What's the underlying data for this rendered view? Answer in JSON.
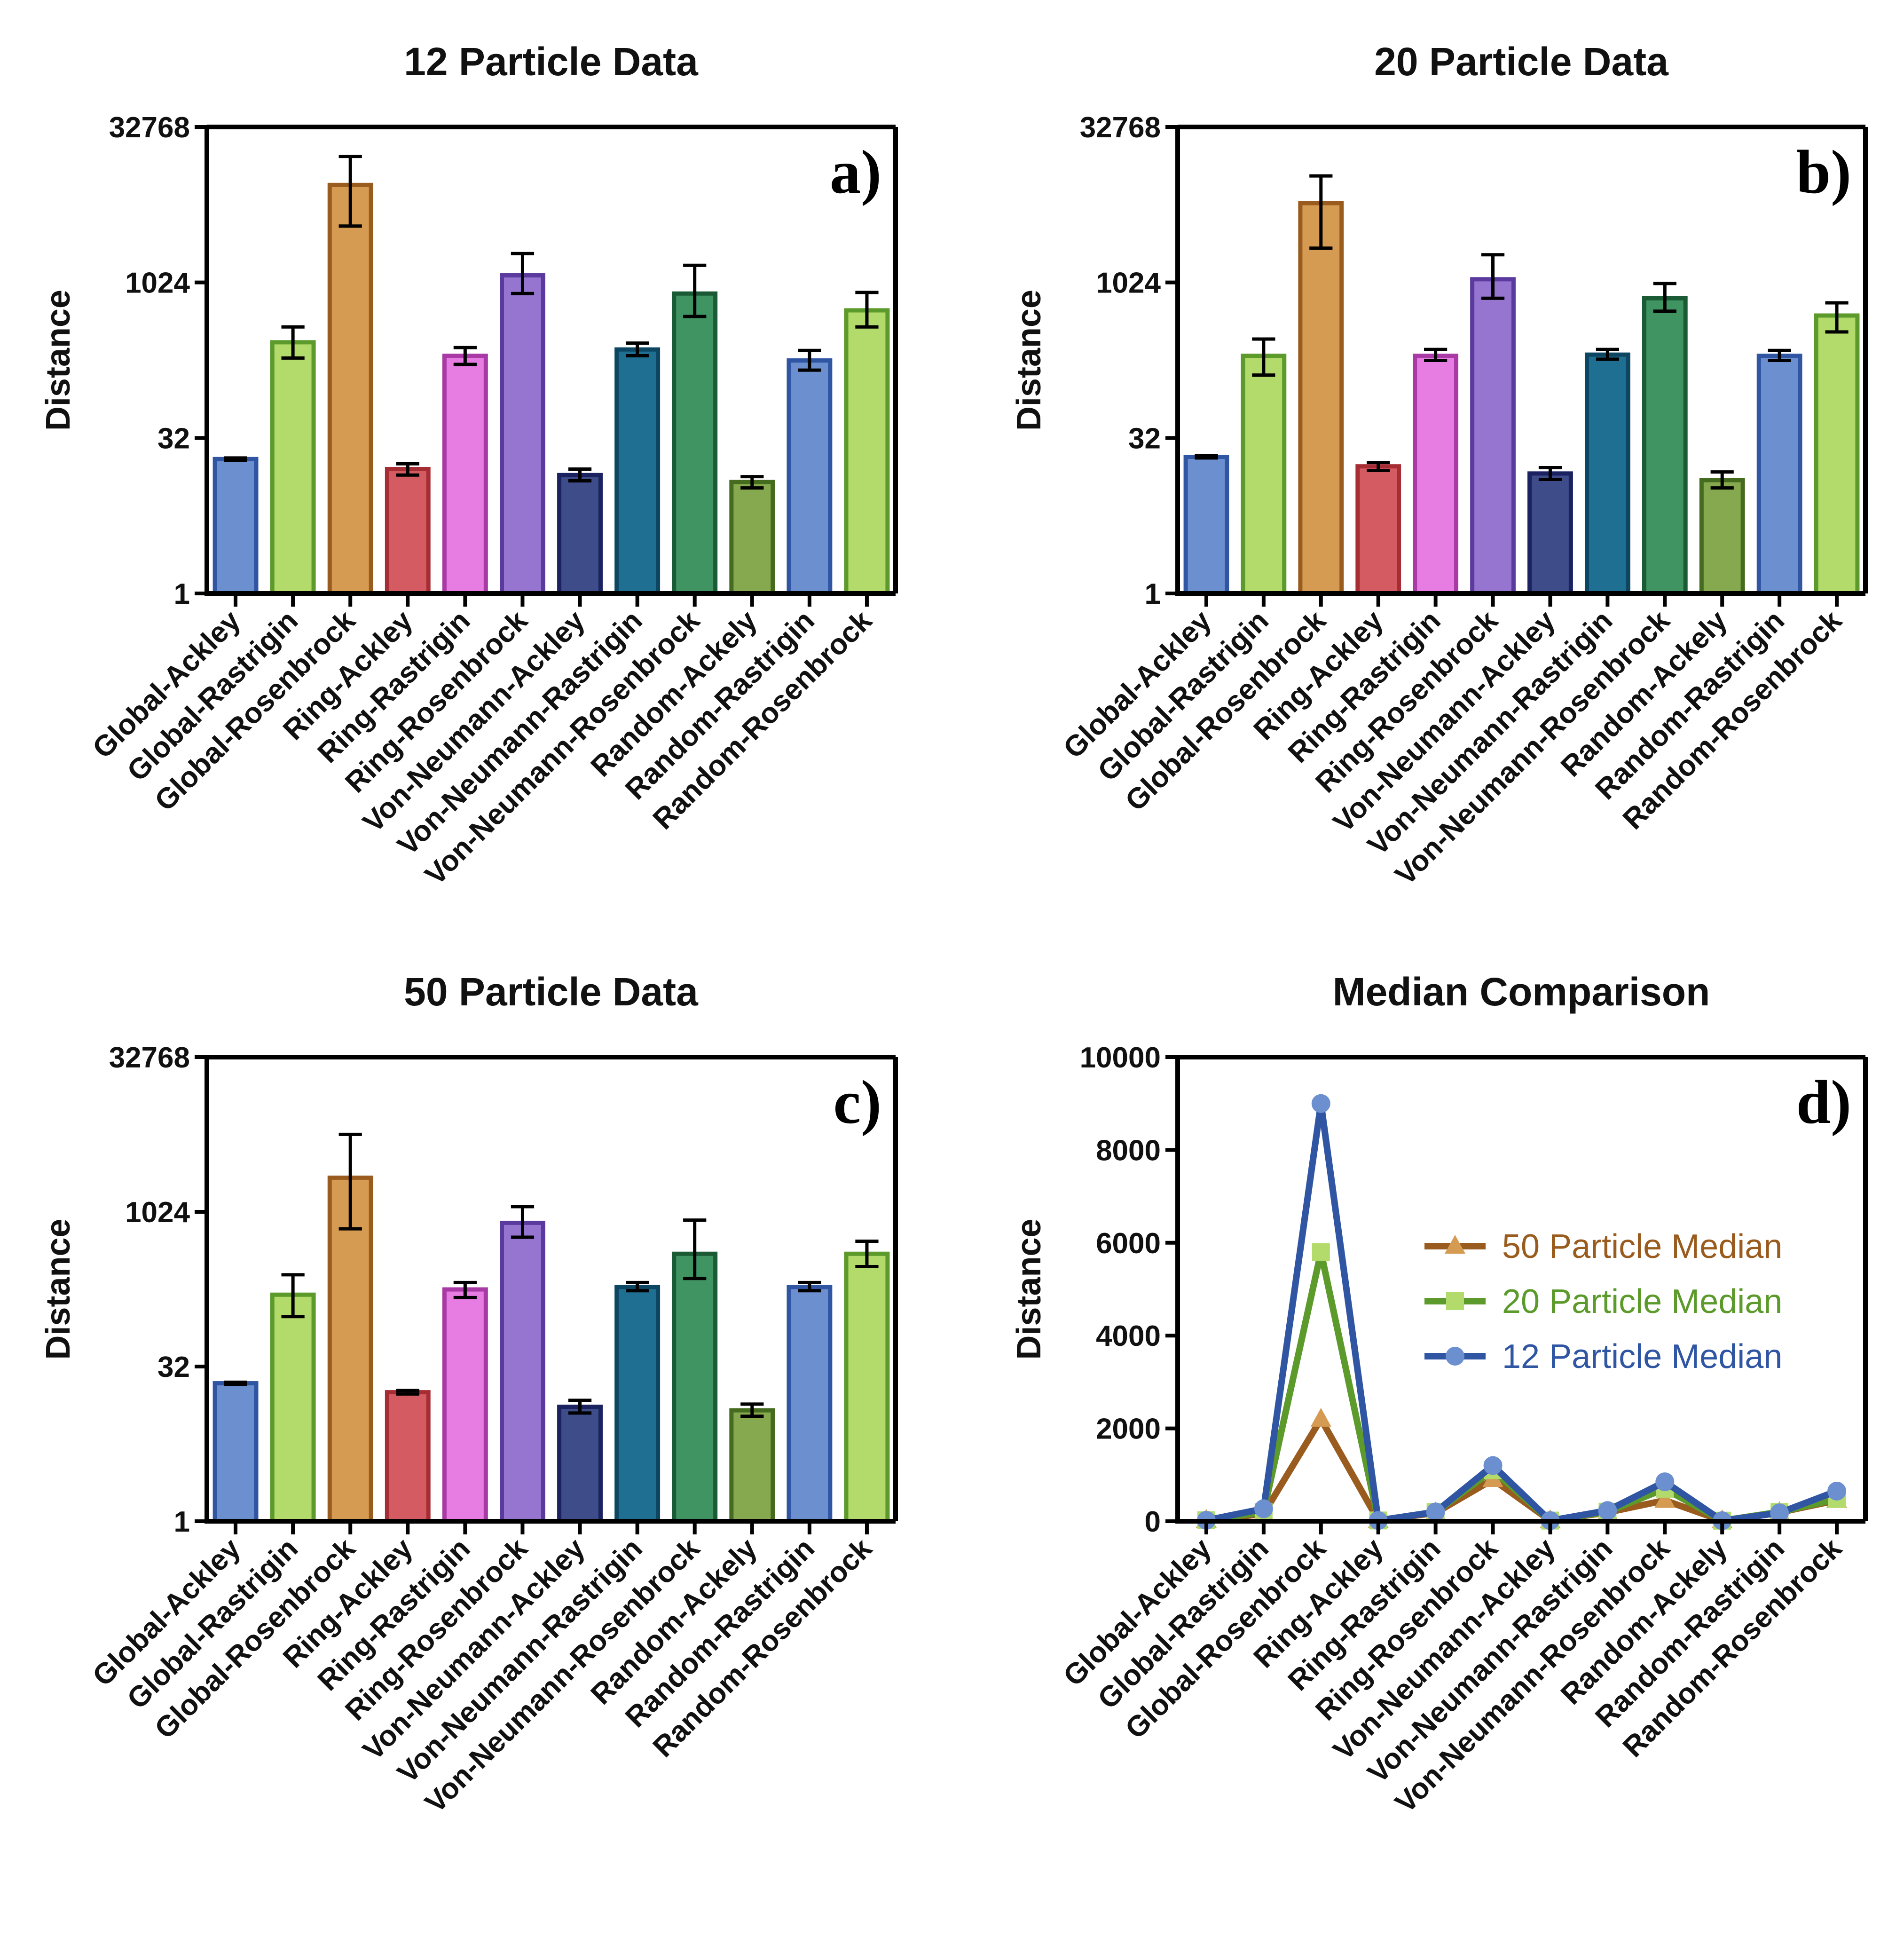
{
  "chart_data": [
    {
      "type": "bar",
      "title": "12 Particle Data",
      "panel_label": "a)",
      "ylabel": "Distance",
      "yscale": "log2",
      "ylim": [
        1,
        32768
      ],
      "yticks": [
        "1",
        "32",
        "1024",
        "32768"
      ],
      "categories": [
        "Global-Ackley",
        "Global-Rastrigin",
        "Global-Rosenbrock",
        "Ring-Ackley",
        "Ring-Rastrigin",
        "Ring-Rosenbrock",
        "Von-Neumann-Ackley",
        "Von-Neumann-Rastrigin",
        "Von-Neumann-Rosenbrock",
        "Random-Ackely",
        "Random-Rastrigin",
        "Random-Rosenbrock"
      ],
      "values": [
        20,
        270,
        9000,
        16,
        200,
        1200,
        14,
        230,
        800,
        12,
        180,
        550
      ],
      "error_low": [
        19.5,
        190,
        3600,
        14,
        165,
        800,
        12.3,
        200,
        480,
        10.5,
        145,
        380
      ],
      "error_high": [
        20.5,
        380,
        17000,
        18,
        240,
        1950,
        16,
        265,
        1500,
        13.5,
        225,
        820
      ],
      "colors": [
        "#6b8fcf",
        "#b2db6b",
        "#d59b52",
        "#d55b63",
        "#e77ce3",
        "#9575cf",
        "#3f4c8a",
        "#1f6f92",
        "#3f9462",
        "#86a84e",
        "#6b8fcf",
        "#b2db6b"
      ],
      "edge_colors": [
        "#2f55a3",
        "#5b9a2b",
        "#9a5c1e",
        "#a72d35",
        "#a93aa5",
        "#5a3a9e",
        "#1a2260",
        "#0d4663",
        "#1a5a34",
        "#456b1e",
        "#2f55a3",
        "#5b9a2b"
      ]
    },
    {
      "type": "bar",
      "title": "20 Particle Data",
      "panel_label": "b)",
      "ylabel": "Distance",
      "yscale": "log2",
      "ylim": [
        1,
        32768
      ],
      "yticks": [
        "1",
        "32",
        "1024",
        "32768"
      ],
      "categories": [
        "Global-Ackley",
        "Global-Rastrigin",
        "Global-Rosenbrock",
        "Ring-Ackley",
        "Ring-Rastrigin",
        "Ring-Rosenbrock",
        "Von-Neumann-Ackley",
        "Von-Neumann-Rastrigin",
        "Von-Neumann-Rosenbrock",
        "Random-Ackely",
        "Random-Rastrigin",
        "Random-Rosenbrock"
      ],
      "values": [
        21,
        200,
        6000,
        17,
        200,
        1100,
        14.5,
        205,
        720,
        12.5,
        200,
        490
      ],
      "error_low": [
        20.5,
        130,
        2200,
        15.5,
        180,
        720,
        12.7,
        185,
        540,
        10.5,
        180,
        340
      ],
      "error_high": [
        21.5,
        290,
        11000,
        18.5,
        230,
        1900,
        16.5,
        230,
        1000,
        15,
        225,
        650
      ]
    },
    {
      "type": "bar",
      "title": "50 Particle Data",
      "panel_label": "c)",
      "ylabel": "Distance",
      "yscale": "log2",
      "ylim": [
        1,
        32768
      ],
      "yticks": [
        "1",
        "32",
        "1024",
        "32768"
      ],
      "categories": [
        "Global-Ackley",
        "Global-Rastrigin",
        "Global-Rosenbrock",
        "Ring-Ackley",
        "Ring-Rastrigin",
        "Ring-Rosenbrock",
        "Von-Neumann-Ackley",
        "Von-Neumann-Rastrigin",
        "Von-Neumann-Rosenbrock",
        "Random-Ackely",
        "Random-Rastrigin",
        "Random-Rosenbrock"
      ],
      "values": [
        22,
        160,
        2200,
        18,
        180,
        800,
        13,
        190,
        400,
        12,
        190,
        400
      ],
      "error_low": [
        21.5,
        98,
        700,
        17.3,
        150,
        580,
        11.3,
        175,
        230,
        10.5,
        175,
        300
      ],
      "error_high": [
        22.5,
        250,
        5800,
        18.7,
        210,
        1150,
        15,
        210,
        850,
        13.8,
        210,
        530
      ]
    },
    {
      "type": "line",
      "title": "Median Comparison",
      "panel_label": "d)",
      "ylabel": "Distance",
      "ylim": [
        0,
        10000
      ],
      "yticks": [
        "0",
        "2000",
        "4000",
        "6000",
        "8000",
        "10000"
      ],
      "categories": [
        "Global-Ackley",
        "Global-Rastrigin",
        "Global-Rosenbrock",
        "Ring-Ackley",
        "Ring-Rastrigin",
        "Ring-Rosenbrock",
        "Von-Neumann-Ackley",
        "Von-Neumann-Rastrigin",
        "Von-Neumann-Rosenbrock",
        "Random-Ackely",
        "Random-Rastrigin",
        "Random-Rosenbrock"
      ],
      "legend_position": "right",
      "series": [
        {
          "name": "50 Particle Median",
          "values": [
            22,
            160,
            2200,
            18,
            180,
            900,
            13,
            190,
            450,
            12,
            190,
            450
          ],
          "line_color": "#9a5c1e",
          "marker_color": "#d59b52",
          "marker": "triangle"
        },
        {
          "name": "20 Particle Median",
          "values": [
            21,
            200,
            5800,
            17,
            200,
            1100,
            14.5,
            205,
            700,
            12.5,
            200,
            480
          ],
          "line_color": "#5b9a2b",
          "marker_color": "#b2db6b",
          "marker": "square"
        },
        {
          "name": "12 Particle Median",
          "values": [
            20,
            270,
            9000,
            16,
            200,
            1200,
            14,
            230,
            850,
            12,
            180,
            650
          ],
          "line_color": "#2f55a3",
          "marker_color": "#6b8fcf",
          "marker": "circle"
        }
      ]
    }
  ]
}
